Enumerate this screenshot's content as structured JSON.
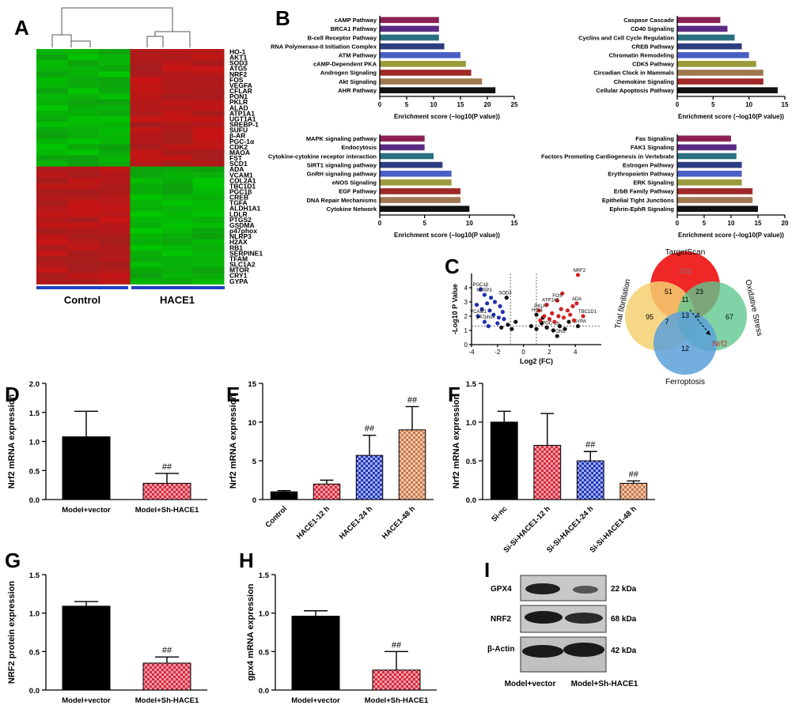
{
  "panels": {
    "A": "A",
    "B": "B",
    "C": "C",
    "D": "D",
    "E": "E",
    "F": "F",
    "G": "G",
    "H": "H",
    "I": "I"
  },
  "heatmap": {
    "genes": [
      "HO-1",
      "AKT1",
      "SOD3",
      "ATG5",
      "NRF2",
      "FOS",
      "VEGFA",
      "CFLAR",
      "PON1",
      "PKLR",
      "ALAD",
      "ATP1A1",
      "UGT1A1",
      "SREBP-1",
      "SUFU",
      "β-AR",
      "PGC-1α",
      "CDK2",
      "MAOA",
      "FST",
      "SCD1",
      "ADA",
      "VCAM1",
      "COL2A1",
      "TBC1D1",
      "PGC1β",
      "CREB",
      "TGFA",
      "ALDH1A1",
      "LDLR",
      "PTGS2",
      "GSDMA",
      "p47phox",
      "NLRP3",
      "H2AX",
      "RB1",
      "SERPINE1",
      "TFAM",
      "SLC1A2",
      "MTOR",
      "CRY1",
      "GYPA"
    ],
    "groups": [
      "Control",
      "HACE1"
    ],
    "up_in_hace1_count": 21
  },
  "chart_data": [
    {
      "type": "bar",
      "panel": "B1",
      "orientation": "horizontal",
      "xlabel": "Enrichment score (−log10(P value))",
      "xlim": [
        0,
        25
      ],
      "xticks": [
        0,
        5,
        10,
        15,
        20,
        25
      ],
      "categories": [
        "cAMP Pathway",
        "BRCA1 Pathway",
        "B-cell Receptor Pathway",
        "RNA Polymerase-II Initiation Complex",
        "ATM Pathway",
        "cAMP-Dependent PKA",
        "Androgen Signaling",
        "Akt Signaling",
        "AHR Pathway"
      ],
      "values": [
        11,
        11,
        11,
        12,
        15,
        16,
        17,
        19,
        21.5
      ],
      "colors": [
        "#8b2252",
        "#5b2a82",
        "#2a7080",
        "#2c3e80",
        "#4a5fc4",
        "#9a9a3a",
        "#a02828",
        "#a07850",
        "#111111"
      ]
    },
    {
      "type": "bar",
      "panel": "B2",
      "orientation": "horizontal",
      "xlabel": "Enrichment score (−log10(P value))",
      "xlim": [
        0,
        15
      ],
      "xticks": [
        0,
        5,
        10,
        15
      ],
      "categories": [
        "Caspase Cascade",
        "CD40 Signaling",
        "Cyclins and Cell Cycle Regulation",
        "CREB Pathway",
        "Chromatin Remodeling",
        "CDK5 Pathway",
        "Circadian Clock in Mammals",
        "Chemokine Signaling",
        "Cellular Apoptosis Pathway"
      ],
      "values": [
        6,
        7,
        8,
        9,
        10,
        11,
        12,
        12,
        14
      ],
      "colors": [
        "#8b2252",
        "#5b2a82",
        "#2a7080",
        "#2c3e80",
        "#4a5fc4",
        "#9a9a3a",
        "#a07850",
        "#a02828",
        "#111111"
      ]
    },
    {
      "type": "bar",
      "panel": "B3",
      "orientation": "horizontal",
      "xlabel": "Enrichment score (−log10(P value))",
      "xlim": [
        0,
        15
      ],
      "xticks": [
        0,
        5,
        10,
        15
      ],
      "categories": [
        "MAPK signaling pathway",
        "Endocytosis",
        "Cytokine-cytokine receptor interaction",
        "SIRT1 signaling pathway",
        "GnRH signaling pathway",
        "eNOS Signaling",
        "EGF Pathway",
        "DNA Repair Mechanisms",
        "Cytokine Network"
      ],
      "values": [
        5,
        5,
        6,
        7,
        8,
        8,
        9,
        9,
        10
      ],
      "colors": [
        "#8b2252",
        "#5b2a82",
        "#2a7080",
        "#2c3e80",
        "#4a5fc4",
        "#9a9a3a",
        "#a02828",
        "#a07850",
        "#111111"
      ]
    },
    {
      "type": "bar",
      "panel": "B4",
      "orientation": "horizontal",
      "xlabel": "Enrichment score (−log10(P value))",
      "xlim": [
        0,
        20
      ],
      "xticks": [
        0,
        5,
        10,
        15,
        20
      ],
      "categories": [
        "Fas Signaling",
        "FAK1 Signaling",
        "Factors Promoting Cardiogenesis in Vertebrate",
        "Estrogen Pathway",
        "Erythropoietin Pathway",
        "ERK Signaling",
        "ErbB Family Pathway",
        "Epithelial Tight Junctions",
        "Ephrin-EphR Signaling"
      ],
      "values": [
        10,
        11,
        11,
        12,
        12,
        12,
        14,
        14,
        15
      ],
      "colors": [
        "#8b2252",
        "#5b2a82",
        "#2a7080",
        "#2c3e80",
        "#4a5fc4",
        "#9a9a3a",
        "#a02828",
        "#a07850",
        "#111111"
      ]
    },
    {
      "type": "scatter",
      "panel": "C",
      "xlabel": "Log2 (FC)",
      "ylabel": "-Log10 P Value",
      "xlim": [
        -4,
        6
      ],
      "ylim": [
        0,
        5
      ],
      "xticks": [
        -4,
        -2,
        0,
        2,
        4
      ],
      "yticks": [
        0,
        1,
        2,
        3,
        4
      ],
      "labels": [
        "PGC1β",
        "NLRP3",
        "SOD3",
        "NRF2",
        "FOS",
        "ATP1A1",
        "ADA",
        "PKLR",
        "HO-1",
        "TBC1D1",
        "GYPA",
        "PON1",
        "PGC-1α",
        "p47phox",
        "VCAM1"
      ],
      "points": [
        {
          "x": -3.3,
          "y": 3.9,
          "c": "blue",
          "label": "PGC1β"
        },
        {
          "x": -3.0,
          "y": 3.5,
          "c": "blue",
          "label": "NLRP3"
        },
        {
          "x": -2.5,
          "y": 3.3,
          "c": "blue"
        },
        {
          "x": -2.2,
          "y": 3.0,
          "c": "blue"
        },
        {
          "x": -3.6,
          "y": 2.8,
          "c": "blue"
        },
        {
          "x": -2.8,
          "y": 2.9,
          "c": "blue"
        },
        {
          "x": -1.8,
          "y": 2.7,
          "c": "blue"
        },
        {
          "x": -3.2,
          "y": 2.5,
          "c": "blue"
        },
        {
          "x": -2.6,
          "y": 2.4,
          "c": "blue"
        },
        {
          "x": -1.6,
          "y": 2.3,
          "c": "blue"
        },
        {
          "x": -3.5,
          "y": 2.0,
          "c": "blue",
          "label": "VCAM1"
        },
        {
          "x": -2.3,
          "y": 2.1,
          "c": "blue"
        },
        {
          "x": -1.9,
          "y": 1.9,
          "c": "blue"
        },
        {
          "x": -3.0,
          "y": 1.6,
          "c": "blue",
          "label": "p47phox"
        },
        {
          "x": -2.0,
          "y": 1.5,
          "c": "blue"
        },
        {
          "x": -1.5,
          "y": 1.8,
          "c": "blue"
        },
        {
          "x": -2.7,
          "y": 1.3,
          "c": "blue"
        },
        {
          "x": -1.7,
          "y": 1.2,
          "c": "black"
        },
        {
          "x": -0.9,
          "y": 1.1,
          "c": "black"
        },
        {
          "x": -1.2,
          "y": 1.4,
          "c": "black"
        },
        {
          "x": -0.6,
          "y": 1.6,
          "c": "black"
        },
        {
          "x": 0.6,
          "y": 1.3,
          "c": "black"
        },
        {
          "x": 1.0,
          "y": 1.1,
          "c": "black"
        },
        {
          "x": 1.4,
          "y": 1.5,
          "c": "black"
        },
        {
          "x": 1.8,
          "y": 1.2,
          "c": "black",
          "label": "PGC-1α"
        },
        {
          "x": 2.3,
          "y": 1.0,
          "c": "black"
        },
        {
          "x": 2.8,
          "y": 1.3,
          "c": "black"
        },
        {
          "x": 3.2,
          "y": 1.1,
          "c": "black"
        },
        {
          "x": 2.6,
          "y": 0.6,
          "c": "black",
          "label": "PON1"
        },
        {
          "x": -1.3,
          "y": 3.3,
          "c": "black",
          "label": "SOD3"
        },
        {
          "x": 1.5,
          "y": 1.9,
          "c": "black"
        },
        {
          "x": 3.5,
          "y": 1.6,
          "c": "black"
        },
        {
          "x": 4.2,
          "y": 1.3,
          "c": "black",
          "label": "GYPA"
        },
        {
          "x": 4.2,
          "y": 4.9,
          "c": "red",
          "label": "NRF2"
        },
        {
          "x": 3.0,
          "y": 3.6,
          "c": "red"
        },
        {
          "x": 2.6,
          "y": 3.1,
          "c": "red",
          "label": "FOS"
        },
        {
          "x": 1.8,
          "y": 2.8,
          "c": "red",
          "label": "ATP1A1"
        },
        {
          "x": 4.1,
          "y": 2.9,
          "c": "red",
          "label": "ADA"
        },
        {
          "x": 3.8,
          "y": 2.7,
          "c": "red"
        },
        {
          "x": 3.4,
          "y": 2.4,
          "c": "red"
        },
        {
          "x": 2.9,
          "y": 2.5,
          "c": "red"
        },
        {
          "x": 1.2,
          "y": 2.4,
          "c": "red",
          "label": "PKLR"
        },
        {
          "x": 2.2,
          "y": 2.2,
          "c": "red"
        },
        {
          "x": 2.7,
          "y": 2.0,
          "c": "red"
        },
        {
          "x": 3.6,
          "y": 2.1,
          "c": "red"
        },
        {
          "x": 4.6,
          "y": 2.0,
          "c": "red",
          "label": "TBC1D1"
        },
        {
          "x": 1.6,
          "y": 2.0,
          "c": "red"
        },
        {
          "x": 2.0,
          "y": 1.8,
          "c": "red"
        },
        {
          "x": 3.1,
          "y": 1.9,
          "c": "red"
        },
        {
          "x": 1.0,
          "y": 2.1,
          "c": "black",
          "label": "HO-1"
        },
        {
          "x": 2.4,
          "y": 1.6,
          "c": "red"
        },
        {
          "x": 3.9,
          "y": 1.7,
          "c": "red"
        },
        {
          "x": 1.3,
          "y": 1.7,
          "c": "red"
        }
      ]
    },
    {
      "type": "bar",
      "panel": "D",
      "ylabel": "Nrf2 mRNA expression",
      "ylim": [
        0,
        2.0
      ],
      "yticks": [
        "0.0",
        "0.5",
        "1.0",
        "1.5",
        "2.0"
      ],
      "categories": [
        "Model+vector",
        "Model+Sh-HACE1"
      ],
      "values": [
        1.08,
        0.28
      ],
      "errors": [
        0.44,
        0.17
      ],
      "sig": [
        "",
        "##"
      ],
      "fills": [
        "black",
        "redcheck"
      ]
    },
    {
      "type": "bar",
      "panel": "E",
      "ylabel": "Nrf2 mRNA expression",
      "ylim": [
        0,
        15
      ],
      "yticks": [
        "0",
        "5",
        "10",
        "15"
      ],
      "categories": [
        "Control",
        "HACE1-12 h",
        "HACE1-24 h",
        "HACE1-48 h"
      ],
      "values": [
        1.0,
        2.0,
        5.7,
        9.0
      ],
      "errors": [
        0.15,
        0.5,
        2.6,
        3.0
      ],
      "sig": [
        "",
        "",
        "##",
        "##"
      ],
      "fills": [
        "black",
        "redcheck",
        "bluecheck",
        "orangecheck"
      ]
    },
    {
      "type": "bar",
      "panel": "F",
      "ylabel": "Nrf2 mRNA expression",
      "ylim": [
        0,
        1.5
      ],
      "yticks": [
        "0.0",
        "0.5",
        "1.0",
        "1.5"
      ],
      "categories": [
        "Si-nc",
        "Si-Si-HACE1-12 h",
        "Si-Si-HACE1-24 h",
        "Si-Si-HACE1-48 h"
      ],
      "values": [
        1.0,
        0.7,
        0.5,
        0.21
      ],
      "errors": [
        0.14,
        0.41,
        0.12,
        0.03
      ],
      "sig": [
        "",
        "",
        "##",
        "##"
      ],
      "fills": [
        "black",
        "redcheck",
        "bluecheck",
        "orangecheck"
      ]
    },
    {
      "type": "bar",
      "panel": "G",
      "ylabel": "NRF2 protein expression",
      "ylim": [
        0,
        1.5
      ],
      "yticks": [
        "0.0",
        "0.5",
        "1.0",
        "1.5"
      ],
      "categories": [
        "Model+vector",
        "Model+Sh-HACE1"
      ],
      "values": [
        1.09,
        0.35
      ],
      "errors": [
        0.06,
        0.08
      ],
      "sig": [
        "",
        "##"
      ],
      "fills": [
        "black",
        "redcheck"
      ]
    },
    {
      "type": "bar",
      "panel": "H",
      "ylabel": "gpx4 mRNA expression",
      "ylim": [
        0,
        1.5
      ],
      "yticks": [
        "0.0",
        "0.5",
        "1.0",
        "1.5"
      ],
      "categories": [
        "Model+vector",
        "Model+Sh-HACE1"
      ],
      "values": [
        0.96,
        0.26
      ],
      "errors": [
        0.07,
        0.24
      ],
      "sig": [
        "",
        "##"
      ],
      "fills": [
        "black",
        "redcheck"
      ]
    }
  ],
  "venn": {
    "sets": [
      "TargetScan",
      "Oxidative Stress",
      "Ferroptosis",
      "Trial fibrillation"
    ],
    "counts": {
      "targetscan_only": "202",
      "target_trial": "51",
      "target_oxid": "23",
      "center_top": "11",
      "trial_only": "95",
      "oxid_only": "67",
      "trial_ferro": "7",
      "center": "13",
      "oxid_ferro": "4",
      "ferro_only": "12"
    },
    "gene": "Nrf2"
  },
  "blot": {
    "rows": [
      {
        "name": "GPX4",
        "size": "22 kDa"
      },
      {
        "name": "NRF2",
        "size": "68 kDa"
      },
      {
        "name": "β-Actin",
        "size": "42 kDa"
      }
    ],
    "lanes": [
      "Model+vector",
      "Model+Sh-HACE1"
    ]
  },
  "colors": {
    "heat_red": "#b02020",
    "heat_green": "#30b030",
    "blue_bar": "#2040c0",
    "red_check": "#e04050",
    "orange_check": "#d08050"
  }
}
